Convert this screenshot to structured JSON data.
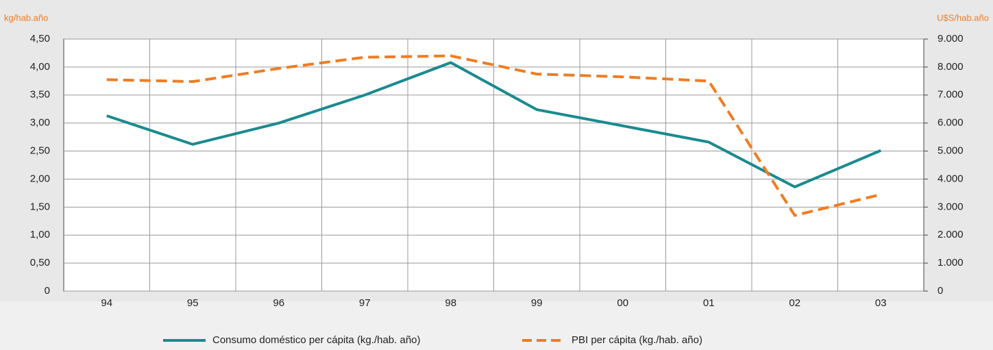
{
  "chart_data": {
    "type": "line",
    "y_label": "kg/hab.año",
    "y2_label": "U$S/hab.año",
    "categories": [
      "94",
      "95",
      "96",
      "97",
      "98",
      "99",
      "00",
      "01",
      "02",
      "03"
    ],
    "series": [
      {
        "name": "Consumo doméstico per cápita (kg./hab. año)",
        "color": "#1a8a8f",
        "dashed": false,
        "values": [
          3.13,
          2.62,
          3.0,
          3.5,
          4.08,
          3.24,
          2.95,
          2.66,
          1.86,
          2.51
        ]
      },
      {
        "name": "PBI per cápita (kg./hab. año)",
        "color": "#f07c22",
        "dashed": true,
        "axis": "y2",
        "values": [
          7550,
          7480,
          7950,
          8350,
          8400,
          7750,
          7650,
          7500,
          2700,
          3450
        ]
      }
    ],
    "ylim": [
      0,
      4.5
    ],
    "yticks": [
      0,
      {
        "value": 0.5,
        "label": "0,50"
      },
      {
        "value": 1,
        "label": "1,00"
      },
      {
        "value": 1.5,
        "label": "1,50"
      },
      {
        "value": 2,
        "label": "2,00"
      },
      {
        "value": 2.5,
        "label": "2,50"
      },
      {
        "value": 3,
        "label": "3,00"
      },
      {
        "value": 3.5,
        "label": "3,50"
      },
      {
        "value": 4,
        "label": "4,00"
      },
      {
        "value": 4.5,
        "label": "4,50"
      }
    ],
    "y2lim": [
      0,
      9000
    ],
    "y2ticks": [
      0,
      {
        "value": 1000,
        "label": "1.000"
      },
      {
        "value": 2000,
        "label": "2.000"
      },
      {
        "value": 3000,
        "label": "3.000"
      },
      {
        "value": 4000,
        "label": "4.000"
      },
      {
        "value": 5000,
        "label": "5.000"
      },
      {
        "value": 6000,
        "label": "6.000"
      },
      {
        "value": 7000,
        "label": "7.000"
      },
      {
        "value": 8000,
        "label": "8.000"
      },
      {
        "value": 9000,
        "label": "9.000"
      }
    ],
    "grid": true
  }
}
